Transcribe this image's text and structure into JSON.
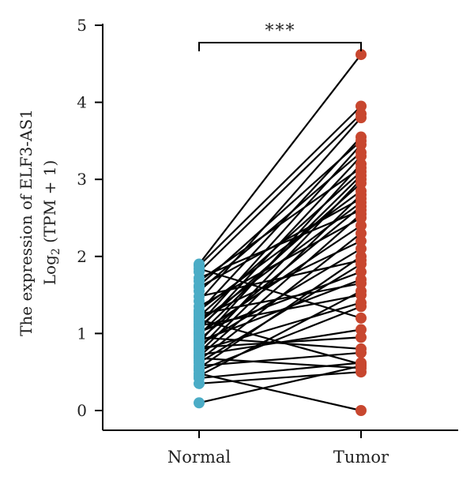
{
  "chart_data": {
    "type": "paired-dot",
    "categories": [
      "Normal",
      "Tumor"
    ],
    "ylabel_line1": "The expression of ELF3-AS1",
    "ylabel_line2_prefix": "Log",
    "ylabel_line2_sub": "2",
    "ylabel_line2_suffix": " (TPM + 1)",
    "ylim": [
      0,
      5
    ],
    "yticks": [
      "0",
      "1",
      "2",
      "3",
      "4",
      "5"
    ],
    "significance": "***",
    "colors": {
      "Normal": "#4bacc6",
      "Tumor": "#c8472f",
      "line": "#000000"
    },
    "pairs": [
      [
        0.1,
        0.58
      ],
      [
        0.35,
        0.5
      ],
      [
        0.42,
        0.62
      ],
      [
        0.45,
        1.55
      ],
      [
        0.48,
        0.0
      ],
      [
        0.52,
        1.35
      ],
      [
        0.55,
        2.0
      ],
      [
        0.58,
        0.75
      ],
      [
        0.62,
        1.9
      ],
      [
        0.65,
        2.3
      ],
      [
        0.68,
        0.55
      ],
      [
        0.7,
        2.55
      ],
      [
        0.72,
        1.05
      ],
      [
        0.75,
        2.8
      ],
      [
        0.78,
        1.4
      ],
      [
        0.8,
        3.0
      ],
      [
        0.82,
        0.95
      ],
      [
        0.85,
        2.1
      ],
      [
        0.88,
        3.2
      ],
      [
        0.9,
        1.7
      ],
      [
        0.92,
        2.65
      ],
      [
        0.95,
        0.8
      ],
      [
        0.98,
        3.05
      ],
      [
        1.0,
        2.4
      ],
      [
        1.02,
        1.8
      ],
      [
        1.05,
        3.3
      ],
      [
        1.08,
        2.95
      ],
      [
        1.1,
        1.5
      ],
      [
        1.12,
        3.45
      ],
      [
        1.15,
        2.7
      ],
      [
        1.18,
        0.6
      ],
      [
        1.2,
        2.2
      ],
      [
        1.22,
        3.1
      ],
      [
        1.25,
        1.65
      ],
      [
        1.28,
        3.55
      ],
      [
        1.3,
        2.85
      ],
      [
        1.35,
        2.5
      ],
      [
        1.42,
        3.8
      ],
      [
        1.48,
        1.95
      ],
      [
        1.55,
        3.35
      ],
      [
        1.6,
        2.75
      ],
      [
        1.62,
        3.5
      ],
      [
        1.68,
        3.15
      ],
      [
        1.72,
        2.6
      ],
      [
        1.8,
        3.85
      ],
      [
        1.84,
        1.2
      ],
      [
        1.88,
        3.95
      ],
      [
        1.9,
        4.62
      ]
    ]
  }
}
